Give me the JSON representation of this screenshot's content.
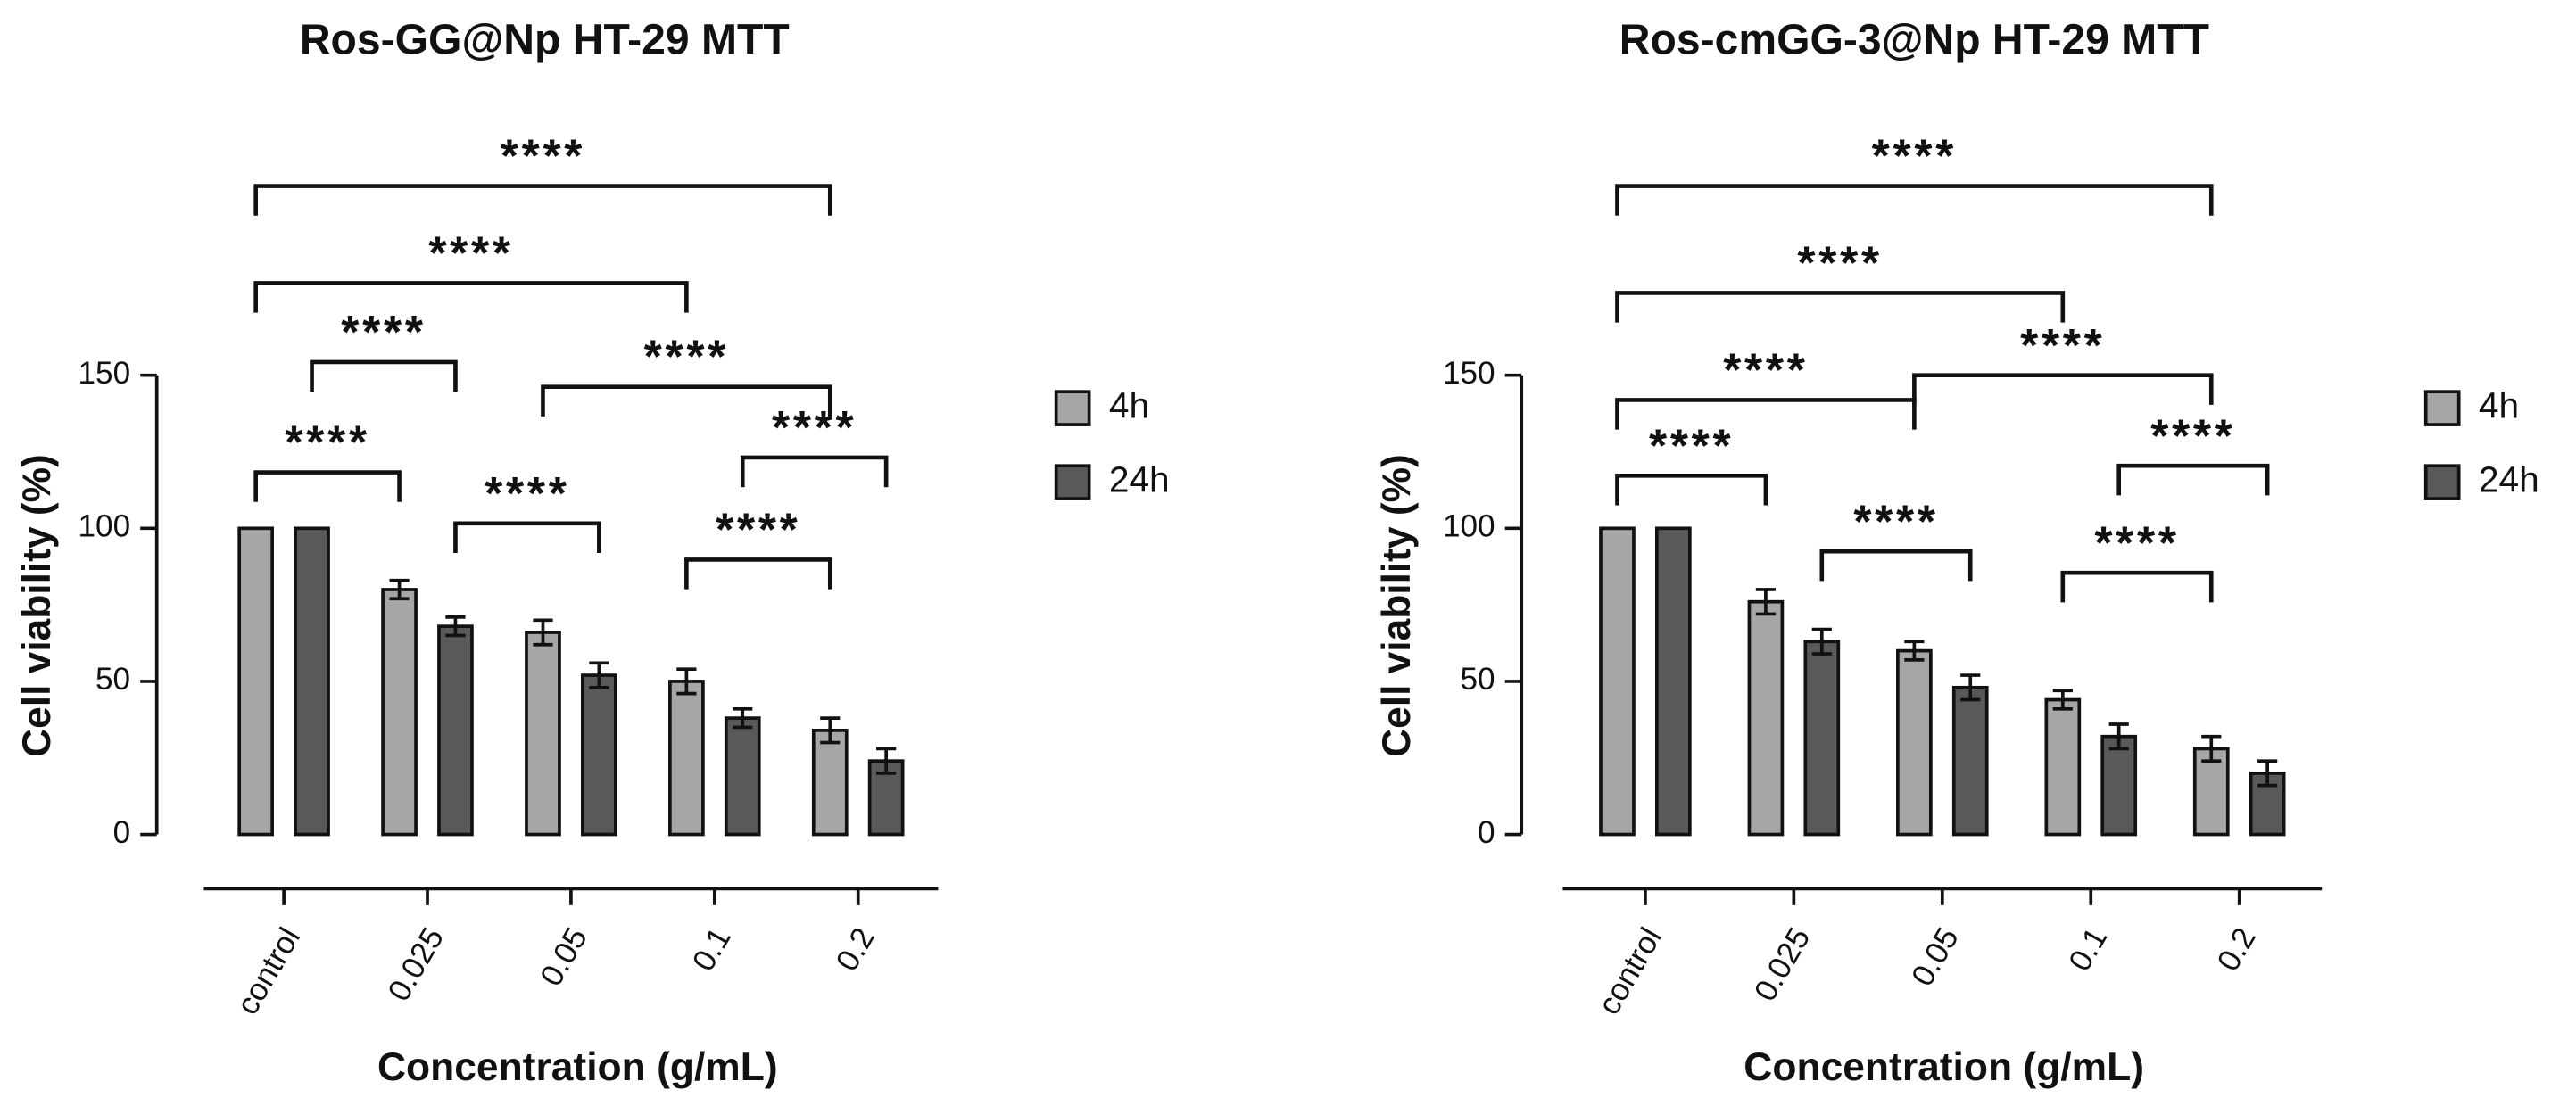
{
  "chart_data": [
    {
      "type": "bar",
      "title": "Ros-GG@Np HT-29 MTT",
      "x_label": "Concentration (g/mL)",
      "y_label": "Cell viability (%)",
      "categories": [
        "control",
        "0.025",
        "0.05",
        "0.1",
        "0.2"
      ],
      "series": [
        {
          "name": "4h",
          "color": "#a6a6a6",
          "values": [
            100,
            80,
            66,
            50,
            34
          ],
          "error": [
            0,
            3,
            4,
            4,
            4
          ]
        },
        {
          "name": "24h",
          "color": "#595959",
          "values": [
            100,
            68,
            52,
            38,
            24
          ],
          "error": [
            0,
            3,
            4,
            3,
            4
          ]
        }
      ],
      "ylim": [
        0,
        150
      ],
      "yticks": [
        0,
        50,
        100,
        150
      ],
      "annotations": [
        "****",
        "****",
        "****",
        "****",
        "****",
        "****",
        "****",
        "****"
      ]
    },
    {
      "type": "bar",
      "title": "Ros-cmGG-3@Np HT-29 MTT",
      "x_label": "Concentration (g/mL)",
      "y_label": "Cell viability (%)",
      "categories": [
        "control",
        "0.025",
        "0.05",
        "0.1",
        "0.2"
      ],
      "series": [
        {
          "name": "4h",
          "color": "#a6a6a6",
          "values": [
            100,
            76,
            60,
            44,
            28
          ],
          "error": [
            0,
            4,
            3,
            3,
            4
          ]
        },
        {
          "name": "24h",
          "color": "#595959",
          "values": [
            100,
            63,
            48,
            32,
            20
          ],
          "error": [
            0,
            4,
            4,
            4,
            4
          ]
        }
      ],
      "ylim": [
        0,
        150
      ],
      "yticks": [
        0,
        50,
        100,
        150
      ],
      "annotations": [
        "****",
        "****",
        "****",
        "****",
        "****",
        "****",
        "****",
        "****"
      ]
    }
  ]
}
